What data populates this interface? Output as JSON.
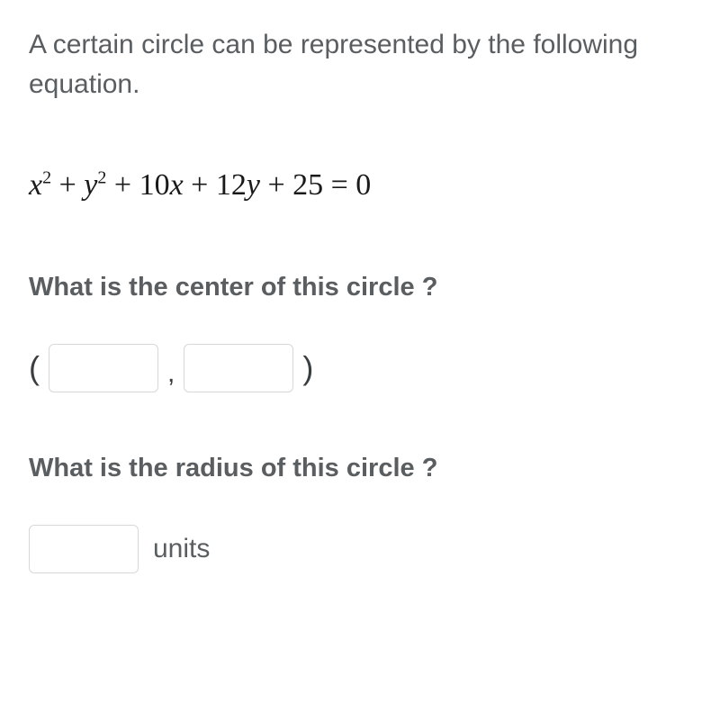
{
  "intro_text": "A certain circle can be represented by the following equation.",
  "equation_parts": {
    "x": "x",
    "sq": "2",
    "plus": " + ",
    "y": "y",
    "coef1": "10",
    "coef2": "12",
    "const": "25",
    "eq_zero": " = 0"
  },
  "question1": "What is the center of this circle ?",
  "question2": "What is the radius of this circle ?",
  "units_label": "units",
  "colors": {
    "text_gray": "#5a5e61",
    "equation_black": "#1a1a1a",
    "border_gray": "#d6d8da",
    "background": "#ffffff"
  },
  "typography": {
    "intro_fontsize": 30,
    "equation_fontsize": 34,
    "question_fontsize": 29,
    "question_weight": 700
  },
  "inputs": {
    "center_x": "",
    "center_y": "",
    "radius": ""
  },
  "parens": {
    "open": "(",
    "close": ")",
    "comma": ","
  }
}
